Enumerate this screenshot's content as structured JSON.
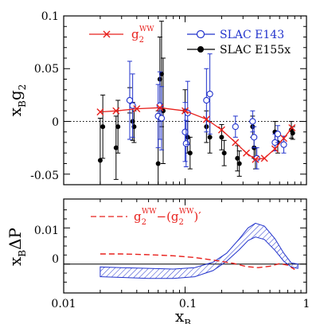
{
  "colors": {
    "red": "#e8201c",
    "blue": "#2233cc",
    "black": "#000000"
  },
  "labels": {
    "top_ylabel_main": "x",
    "top_ylabel_sub1": "B",
    "top_ylabel_g": "g",
    "top_ylabel_sub2": "2",
    "bottom_ylabel_main": "x",
    "bottom_ylabel_sub": "B",
    "bottom_ylabel_rest": "ΔP",
    "xlabel_main": "x",
    "xlabel_sub": "B"
  },
  "legend": {
    "ww_base": "g",
    "ww_sub": "2",
    "ww_sup": "WW",
    "e143": "SLAC E143",
    "e155x": "SLAC E155x",
    "diff_a_base": "g",
    "diff_a_sub": "2",
    "diff_a_sup": "WW",
    "diff_minus": "−(",
    "diff_b_base": "g",
    "diff_b_sub": "2",
    "diff_b_sup": "WW",
    "diff_close": ")′"
  },
  "chart_data": [
    {
      "type": "scatter",
      "xscale": "log",
      "xlim": [
        0.01,
        1
      ],
      "ylim": [
        -0.06,
        0.1
      ],
      "yticks": [
        "-0.05",
        "0",
        "0.05",
        "0.1"
      ],
      "xtick_labels": [
        "0.01",
        "0.1",
        "1"
      ],
      "zero_line": "dotted",
      "series": [
        {
          "name": "g2WW",
          "style": "line-with-x-markers",
          "color": "red",
          "x": [
            0.02,
            0.027,
            0.04,
            0.062,
            0.1,
            0.15,
            0.2,
            0.26,
            0.32,
            0.38,
            0.45,
            0.55,
            0.65,
            0.76
          ],
          "y": [
            0.009,
            0.01,
            0.012,
            0.013,
            0.01,
            0.002,
            -0.008,
            -0.02,
            -0.03,
            -0.036,
            -0.035,
            -0.026,
            -0.016,
            -0.006
          ]
        },
        {
          "name": "SLAC E143",
          "style": "open-circle-errorbars",
          "color": "blue",
          "points": [
            {
              "x": 0.035,
              "y": 0.02,
              "err": 0.037
            },
            {
              "x": 0.037,
              "y": 0.015,
              "err": 0.03
            },
            {
              "x": 0.06,
              "y": 0.005,
              "err": 0.03
            },
            {
              "x": 0.062,
              "y": 0.015,
              "err": 0.032
            },
            {
              "x": 0.064,
              "y": 0.003,
              "err": 0.03
            },
            {
              "x": 0.1,
              "y": -0.01,
              "err": 0.028
            },
            {
              "x": 0.102,
              "y": -0.021,
              "err": 0.022
            },
            {
              "x": 0.105,
              "y": 0.008,
              "err": 0.03
            },
            {
              "x": 0.15,
              "y": 0.02,
              "err": 0.03
            },
            {
              "x": 0.16,
              "y": 0.026,
              "err": 0.038
            },
            {
              "x": 0.26,
              "y": -0.005,
              "err": 0.01
            },
            {
              "x": 0.36,
              "y": 0.0,
              "err": 0.01
            },
            {
              "x": 0.37,
              "y": -0.015,
              "err": 0.01
            },
            {
              "x": 0.39,
              "y": -0.035,
              "err": 0.01
            },
            {
              "x": 0.55,
              "y": -0.02,
              "err": 0.008
            },
            {
              "x": 0.58,
              "y": -0.012,
              "err": 0.008
            },
            {
              "x": 0.65,
              "y": -0.022,
              "err": 0.008
            }
          ]
        },
        {
          "name": "SLAC E155x",
          "style": "filled-circle-errorbars",
          "color": "black",
          "points": [
            {
              "x": 0.02,
              "y": -0.037,
              "err": 0.04
            },
            {
              "x": 0.021,
              "y": -0.005,
              "err": 0.03
            },
            {
              "x": 0.027,
              "y": -0.025,
              "err": 0.03
            },
            {
              "x": 0.028,
              "y": -0.005,
              "err": 0.025
            },
            {
              "x": 0.035,
              "y": 0.02,
              "err": 0.012
            },
            {
              "x": 0.037,
              "y": 0.0,
              "err": 0.018
            },
            {
              "x": 0.038,
              "y": -0.005,
              "err": 0.015
            },
            {
              "x": 0.06,
              "y": -0.04,
              "err": 0.05
            },
            {
              "x": 0.062,
              "y": 0.04,
              "err": 0.04
            },
            {
              "x": 0.064,
              "y": 0.045,
              "err": 0.05
            },
            {
              "x": 0.066,
              "y": 0.01,
              "err": 0.05
            },
            {
              "x": 0.1,
              "y": 0.01,
              "err": 0.02
            },
            {
              "x": 0.105,
              "y": -0.015,
              "err": 0.015
            },
            {
              "x": 0.11,
              "y": -0.03,
              "err": 0.015
            },
            {
              "x": 0.15,
              "y": -0.005,
              "err": 0.015
            },
            {
              "x": 0.16,
              "y": -0.015,
              "err": 0.015
            },
            {
              "x": 0.2,
              "y": -0.015,
              "err": 0.012
            },
            {
              "x": 0.21,
              "y": -0.03,
              "err": 0.012
            },
            {
              "x": 0.27,
              "y": -0.035,
              "err": 0.012
            },
            {
              "x": 0.28,
              "y": -0.04,
              "err": 0.012
            },
            {
              "x": 0.36,
              "y": -0.005,
              "err": 0.01
            },
            {
              "x": 0.37,
              "y": -0.025,
              "err": 0.01
            },
            {
              "x": 0.38,
              "y": -0.035,
              "err": 0.01
            },
            {
              "x": 0.55,
              "y": -0.01,
              "err": 0.01
            },
            {
              "x": 0.58,
              "y": -0.02,
              "err": 0.01
            },
            {
              "x": 0.75,
              "y": -0.008,
              "err": 0.008
            },
            {
              "x": 0.77,
              "y": -0.011,
              "err": 0.006
            }
          ]
        }
      ]
    },
    {
      "type": "area",
      "xscale": "log",
      "xlim": [
        0.01,
        1
      ],
      "ylim": [
        -0.008,
        0.018
      ],
      "yticks": [
        "0",
        "0.01"
      ],
      "xtick_labels": [
        "0.01",
        "0.1",
        "1"
      ],
      "series": [
        {
          "name": "g2WW-(g2WW)'",
          "style": "dashed-line",
          "color": "red",
          "x": [
            0.02,
            0.03,
            0.05,
            0.08,
            0.12,
            0.18,
            0.25,
            0.32,
            0.4,
            0.5,
            0.6,
            0.7,
            0.8
          ],
          "y": [
            0.0028,
            0.0028,
            0.0026,
            0.0023,
            0.0018,
            0.001,
            0.0002,
            -0.0007,
            -0.001,
            -0.0006,
            0.0001,
            -0.0003,
            -0.0015
          ]
        },
        {
          "name": "hatched-band",
          "style": "hatched-band",
          "color": "blue",
          "x": [
            0.02,
            0.03,
            0.05,
            0.08,
            0.12,
            0.17,
            0.22,
            0.28,
            0.33,
            0.38,
            0.45,
            0.55,
            0.65,
            0.75,
            0.85
          ],
          "upper": [
            -0.0008,
            -0.001,
            -0.0012,
            -0.0014,
            -0.001,
            0.0005,
            0.003,
            0.007,
            0.01,
            0.0113,
            0.0105,
            0.007,
            0.003,
            0.0003,
            0.0
          ],
          "lower": [
            -0.0035,
            -0.0037,
            -0.004,
            -0.004,
            -0.0035,
            -0.0018,
            0.0008,
            0.004,
            0.0065,
            0.0075,
            0.0068,
            0.0038,
            0.0008,
            -0.0008,
            -0.0012
          ]
        }
      ]
    }
  ]
}
